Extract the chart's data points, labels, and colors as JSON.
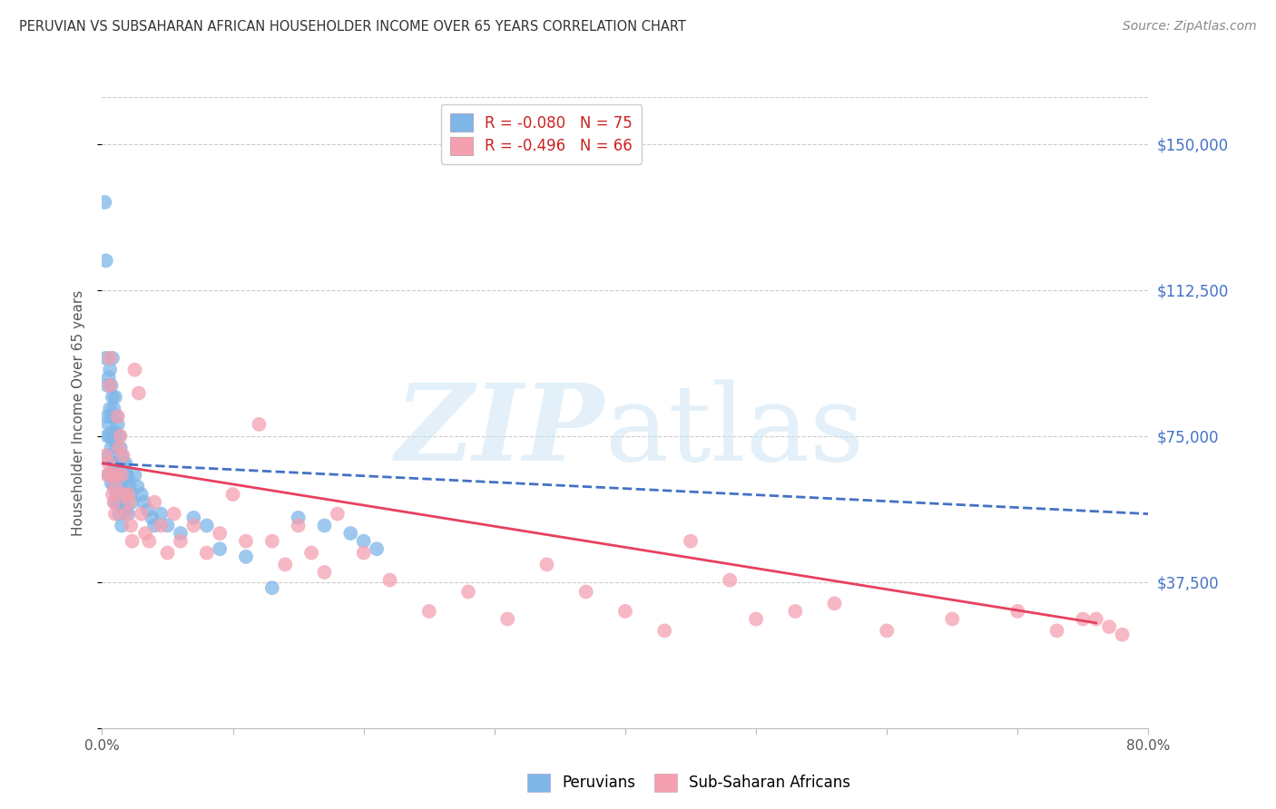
{
  "title": "PERUVIAN VS SUBSAHARAN AFRICAN HOUSEHOLDER INCOME OVER 65 YEARS CORRELATION CHART",
  "source": "Source: ZipAtlas.com",
  "ylabel": "Householder Income Over 65 years",
  "yticks": [
    0,
    37500,
    75000,
    112500,
    150000
  ],
  "ytick_labels": [
    "",
    "$37,500",
    "$75,000",
    "$112,500",
    "$150,000"
  ],
  "xlim": [
    0.0,
    0.8
  ],
  "ylim": [
    0,
    162000
  ],
  "legend_blue_r": "R = -0.080",
  "legend_blue_n": "N = 75",
  "legend_pink_r": "R = -0.496",
  "legend_pink_n": "N = 66",
  "legend_label_blue": "Peruvians",
  "legend_label_pink": "Sub-Saharan Africans",
  "blue_color": "#7EB6E8",
  "pink_color": "#F4A0B0",
  "blue_line_color": "#4472C4",
  "pink_line_color": "#E84060",
  "blue_scatter_x": [
    0.002,
    0.003,
    0.003,
    0.004,
    0.004,
    0.004,
    0.005,
    0.005,
    0.005,
    0.005,
    0.006,
    0.006,
    0.006,
    0.006,
    0.007,
    0.007,
    0.007,
    0.007,
    0.008,
    0.008,
    0.008,
    0.008,
    0.009,
    0.009,
    0.009,
    0.01,
    0.01,
    0.01,
    0.01,
    0.011,
    0.011,
    0.011,
    0.012,
    0.012,
    0.012,
    0.013,
    0.013,
    0.013,
    0.014,
    0.014,
    0.015,
    0.015,
    0.015,
    0.016,
    0.016,
    0.017,
    0.017,
    0.018,
    0.018,
    0.019,
    0.02,
    0.02,
    0.021,
    0.022,
    0.023,
    0.025,
    0.027,
    0.03,
    0.032,
    0.035,
    0.038,
    0.04,
    0.045,
    0.05,
    0.06,
    0.07,
    0.08,
    0.09,
    0.11,
    0.13,
    0.15,
    0.17,
    0.19,
    0.2,
    0.21
  ],
  "blue_scatter_y": [
    135000,
    120000,
    95000,
    88000,
    80000,
    75000,
    90000,
    78000,
    70000,
    65000,
    92000,
    82000,
    75000,
    65000,
    88000,
    80000,
    72000,
    63000,
    95000,
    85000,
    76000,
    68000,
    82000,
    74000,
    62000,
    85000,
    76000,
    68000,
    58000,
    80000,
    72000,
    60000,
    78000,
    68000,
    58000,
    75000,
    65000,
    55000,
    72000,
    62000,
    70000,
    62000,
    52000,
    68000,
    58000,
    66000,
    56000,
    68000,
    56000,
    65000,
    64000,
    55000,
    62000,
    60000,
    58000,
    65000,
    62000,
    60000,
    58000,
    56000,
    54000,
    52000,
    55000,
    52000,
    50000,
    54000,
    52000,
    46000,
    44000,
    36000,
    54000,
    52000,
    50000,
    48000,
    46000
  ],
  "pink_scatter_x": [
    0.003,
    0.004,
    0.005,
    0.006,
    0.006,
    0.007,
    0.008,
    0.009,
    0.01,
    0.01,
    0.011,
    0.012,
    0.013,
    0.014,
    0.015,
    0.016,
    0.017,
    0.018,
    0.02,
    0.021,
    0.022,
    0.023,
    0.025,
    0.028,
    0.03,
    0.033,
    0.036,
    0.04,
    0.045,
    0.05,
    0.055,
    0.06,
    0.07,
    0.08,
    0.09,
    0.1,
    0.11,
    0.12,
    0.13,
    0.14,
    0.15,
    0.16,
    0.17,
    0.18,
    0.2,
    0.22,
    0.25,
    0.28,
    0.31,
    0.34,
    0.37,
    0.4,
    0.43,
    0.45,
    0.48,
    0.5,
    0.53,
    0.56,
    0.6,
    0.65,
    0.7,
    0.73,
    0.75,
    0.76,
    0.77,
    0.78
  ],
  "pink_scatter_y": [
    70000,
    65000,
    68000,
    95000,
    88000,
    65000,
    60000,
    58000,
    62000,
    55000,
    65000,
    80000,
    72000,
    75000,
    65000,
    70000,
    60000,
    55000,
    60000,
    58000,
    52000,
    48000,
    92000,
    86000,
    55000,
    50000,
    48000,
    58000,
    52000,
    45000,
    55000,
    48000,
    52000,
    45000,
    50000,
    60000,
    48000,
    78000,
    48000,
    42000,
    52000,
    45000,
    40000,
    55000,
    45000,
    38000,
    30000,
    35000,
    28000,
    42000,
    35000,
    30000,
    25000,
    48000,
    38000,
    28000,
    30000,
    32000,
    25000,
    28000,
    30000,
    25000,
    28000,
    28000,
    26000,
    24000
  ],
  "blue_line_x": [
    0.0,
    0.8
  ],
  "blue_line_y": [
    68000,
    55000
  ],
  "pink_line_x": [
    0.0,
    0.76
  ],
  "pink_line_y": [
    68000,
    27000
  ]
}
